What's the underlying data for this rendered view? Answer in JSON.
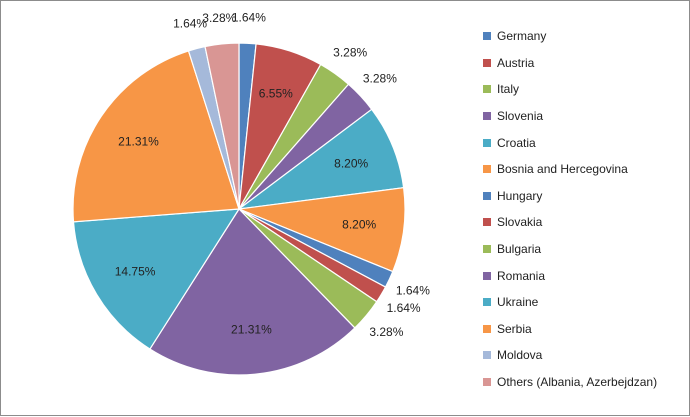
{
  "chart_data": {
    "type": "pie",
    "start_angle_deg": 0,
    "direction": "clockwise",
    "legend_position": "right",
    "slices": [
      {
        "label": "Germany",
        "value": 1.64,
        "display": "1.64%",
        "color": "#4F81BD"
      },
      {
        "label": "Austria",
        "value": 6.55,
        "display": "6.55%",
        "color": "#C0504D"
      },
      {
        "label": "Italy",
        "value": 3.28,
        "display": "3.28%",
        "color": "#9BBB59"
      },
      {
        "label": "Slovenia",
        "value": 3.28,
        "display": "3.28%",
        "color": "#8064A2"
      },
      {
        "label": "Croatia",
        "value": 8.2,
        "display": "8.20%",
        "color": "#4BACC6"
      },
      {
        "label": "Bosnia and Hercegovina",
        "value": 8.2,
        "display": "8.20%",
        "color": "#F79646"
      },
      {
        "label": "Hungary",
        "value": 1.64,
        "display": "1.64%",
        "color": "#4F81BD"
      },
      {
        "label": "Slovakia",
        "value": 1.64,
        "display": "1.64%",
        "color": "#C0504D"
      },
      {
        "label": "Bulgaria",
        "value": 3.28,
        "display": "3.28%",
        "color": "#9BBB59"
      },
      {
        "label": "Romania",
        "value": 21.31,
        "display": "21.31%",
        "color": "#8064A2"
      },
      {
        "label": "Ukraine",
        "value": 14.75,
        "display": "14.75%",
        "color": "#4BACC6"
      },
      {
        "label": "Serbia",
        "value": 21.31,
        "display": "21.31%",
        "color": "#F79646"
      },
      {
        "label": "Moldova",
        "value": 1.64,
        "display": "1.64%",
        "color": "#A5B9DA"
      },
      {
        "label": "Others (Albania, Azerbejdzan)",
        "value": 3.28,
        "display": "3.28%",
        "color": "#D99694"
      }
    ]
  }
}
